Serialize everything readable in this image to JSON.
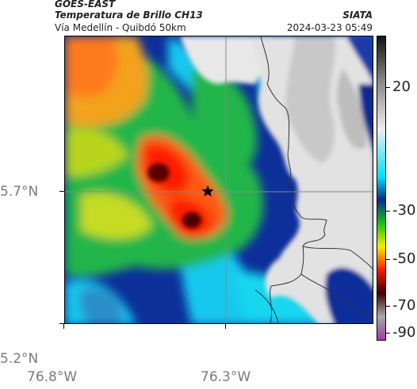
{
  "header": {
    "satellite": "GOES-EAST",
    "product": "Temperatura de Brillo CH13",
    "org": "SIATA",
    "route": "Vía Medellín - Quibdó 50km",
    "timestamp": "2024-03-23 05:49"
  },
  "axes": {
    "x_ticks": [
      "76.8°W",
      "76.3°W"
    ],
    "y_ticks": [
      "5.7°N",
      "5.2°N"
    ]
  },
  "colorbar": {
    "ticks": [
      "20",
      "-30",
      "-50",
      "-70",
      "-90"
    ],
    "stops": [
      {
        "value": 40,
        "color": "#141414"
      },
      {
        "value": 20,
        "color": "#8c8c8c"
      },
      {
        "value": 0,
        "color": "#eeeeee"
      },
      {
        "value": -20,
        "color": "#00e0ff"
      },
      {
        "value": -30,
        "color": "#0a2a8c"
      },
      {
        "value": -40,
        "color": "#16c016"
      },
      {
        "value": -50,
        "color": "#f0f000"
      },
      {
        "value": -60,
        "color": "#ff1a00"
      },
      {
        "value": -70,
        "color": "#3a0000"
      },
      {
        "value": -80,
        "color": "#aaaaaa"
      },
      {
        "value": -90,
        "color": "#a23aa6"
      }
    ]
  },
  "map": {
    "marker": "star",
    "gridline_color": "#888888",
    "coastline_color": "#333333"
  }
}
